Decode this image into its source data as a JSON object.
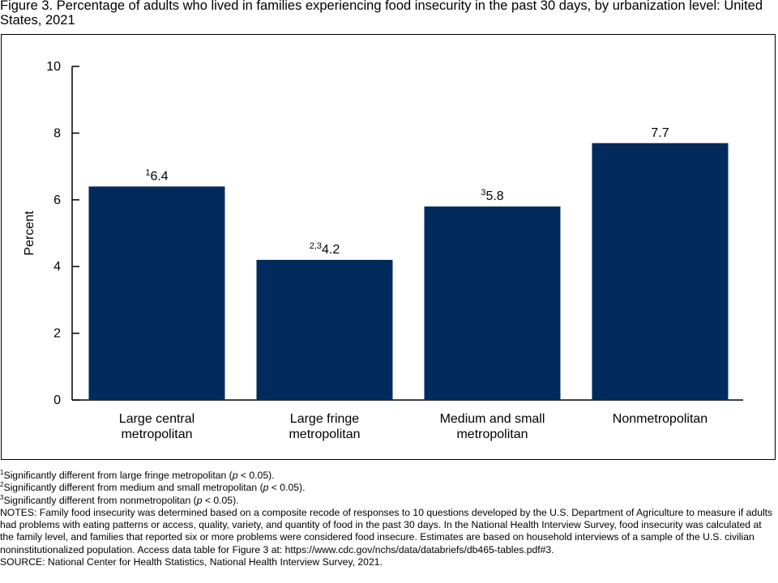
{
  "title": "Figure 3. Percentage of adults who lived in families experiencing food insecurity in the past 30 days, by urbanization level: United States, 2021",
  "chart_data": {
    "type": "bar",
    "categories": [
      [
        "Large central",
        "metropolitan"
      ],
      [
        "Large fringe",
        "metropolitan"
      ],
      [
        "Medium and small",
        "metropolitan"
      ],
      [
        "Nonmetropolitan"
      ]
    ],
    "values": [
      6.4,
      4.2,
      5.8,
      7.7
    ],
    "value_labels": [
      "6.4",
      "4.2",
      "5.8",
      "7.7"
    ],
    "value_superscripts": [
      "1",
      "2,3",
      "3",
      ""
    ],
    "ylabel": "Percent",
    "ylim": [
      0,
      10
    ],
    "yticks": [
      "0",
      "2",
      "4",
      "6",
      "8",
      "10"
    ],
    "bar_color": "#002B5C",
    "grid": false
  },
  "footnotes": {
    "f1_sup": "1",
    "f1_text": "Significantly different from large fringe metropolitan (",
    "f2_sup": "2",
    "f2_text": "Significantly different from medium and small metropolitan (",
    "f3_sup": "3",
    "f3_text": "Significantly different from nonmetropolitan (",
    "p_symbol": "p",
    "p_tail": " < 0.05).",
    "notes": "NOTES: Family food insecurity was determined based on a composite recode of responses to 10 questions developed by the U.S. Department of Agriculture to measure if adults had problems with eating patterns or access, quality, variety, and quantity of food in the past 30 days. In the National Health Interview Survey, food insecurity was calculated at the family level, and families that reported six or more problems were considered food insecure. Estimates are based on household interviews of a sample of the U.S. civilian noninstitutionalized population. Access data table for Figure 3 at: https://www.cdc.gov/nchs/data/databriefs/db465-tables.pdf#3.",
    "source": "SOURCE: National Center for Health Statistics, National Health Interview Survey, 2021."
  }
}
